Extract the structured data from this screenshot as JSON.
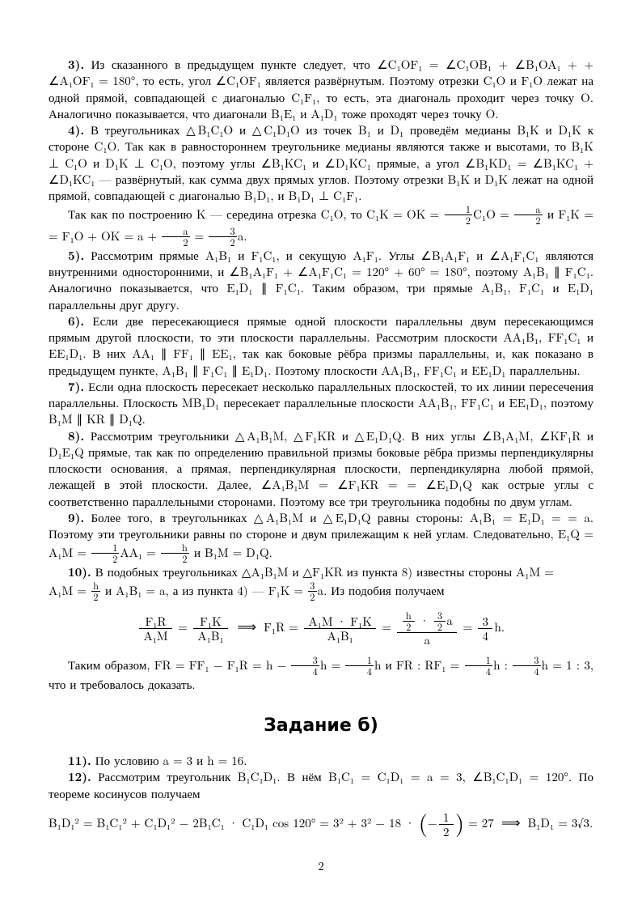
{
  "colors": {
    "text": "#000000",
    "background": "#ffffff"
  },
  "typography": {
    "body_font": "CMU Serif / Times",
    "body_size_pt": 11,
    "heading_font": "CMU Sans Serif",
    "heading_size_pt": 16,
    "heading_weight": "bold"
  },
  "paragraphs": {
    "p3": {
      "label": "3).",
      "text": " Из сказанного в предыдущем пункте следует, что ∠C₁OF₁ = ∠C₁OB₁ + ∠B₁OA₁ + + ∠A₁OF₁ = 180°, то есть, угол ∠C₁OF₁ является развёрнутым. Поэтому отрезки C₁O и F₁O лежат на одной прямой, совпадающей с диагональю C₁F₁, то есть, эта диагональ проходит через точку O. Аналогично показывается, что диагонали B₁E₁ и A₁D₁ тоже проходят через точку O."
    },
    "p4a": {
      "label": "4).",
      "text": " В треугольниках △B₁C₁O и △C₁D₁O из точек B₁ и D₁ проведём медианы B₁K и D₁K к стороне C₁O. Так как в равностороннем треугольнике медианы являются также и высотами, то B₁K ⊥ C₁O и D₁K ⊥ C₁O, поэтому углы ∠B₁KC₁ и ∠D₁KC₁ прямые, а угол ∠B₁KD₁ = ∠B₁KC₁ + ∠D₁KC₁ — развёрнутый, как сумма двух прямых углов. Поэтому отрезки B₁K и D₁K лежат на одной прямой, совпадающей с диагональю B₁D₁, и B₁D₁ ⊥ C₁F₁."
    },
    "p4b": "Так как по построению K — середина отрезка C₁O, то C₁K = OK = ",
    "p4b_tail": "C₁O = ",
    "p4b_tail2": " и F₁K = = F₁O + OK = a + ",
    "p4b_tail3": " = ",
    "p4b_tail4": "a.",
    "p5": {
      "label": "5).",
      "text": " Рассмотрим прямые A₁B₁ и F₁C₁, и секущую A₁F₁. Углы ∠B₁A₁F₁ и ∠A₁F₁C₁ являются внутренними односторонними, и ∠B₁A₁F₁ + ∠A₁F₁C₁ = 120° + 60° = 180°, поэтому A₁B₁ ∥ F₁C₁. Аналогично показывается, что E₁D₁ ∥ F₁C₁. Таким образом, три прямые A₁B₁, F₁C₁ и E₁D₁ параллельны друг другу."
    },
    "p6": {
      "label": "6).",
      "text": " Если две пересекающиеся прямые одной плоскости параллельны двум пересекающимся прямым другой плоскости, то эти плоскости параллельны. Рассмотрим плоскости AA₁B₁, FF₁C₁ и EE₁D₁. В них AA₁ ∥ FF₁ ∥ EE₁, так как боковые рёбра призмы параллельны, и, как показано в предыдущем пункте, A₁B₁ ∥ F₁C₁ ∥ E₁D₁. Поэтому плоскости AA₁B₁, FF₁C₁ и EE₁D₁ параллельны."
    },
    "p7": {
      "label": "7).",
      "text": " Если одна плоскость пересекает несколько параллельных плоскостей, то их линии пересечения параллельны. Плоскость MB₁D₁ пересекает параллельные плоскости AA₁B₁, FF₁C₁ и EE₁D₁, поэтому B₁M ∥ KR ∥ D₁Q."
    },
    "p8": {
      "label": "8).",
      "text": " Рассмотрим треугольники △A₁B₁M, △F₁KR и △E₁D₁Q. В них углы ∠B₁A₁M, ∠KF₁R и D₁E₁Q прямые, так как по определению правильной призмы боковые рёбра призмы перпендикулярны плоскости основания, а прямая, перпендикулярная плоскости, перпендикулярна любой прямой, лежащей в этой плоскости. Далее, ∠A₁B₁M = ∠F₁KR = = ∠E₁D₁Q как острые углы с соответственно параллельными сторонами. Поэтому все три треугольника подобны по двум углам."
    },
    "p9a": {
      "label": "9).",
      "text": " Более того, в треугольниках △A₁B₁M и △E₁D₁Q равны стороны: A₁B₁ = E₁D₁ = = a. Поэтому эти треугольники равны по стороне и двум прилежащим к ней углам. Следовательно, E₁Q = A₁M = "
    },
    "p9a_tail": "AA₁ = ",
    "p9a_tail2": " и B₁M = D₁Q.",
    "p10a": {
      "label": "10).",
      "text": " В подобных треугольниках △A₁B₁M и △F₁KR из пункта 8) известны стороны A₁M = "
    },
    "p10a_mid": " и A₁B₁ = a, а из пункта 4) — F₁K = ",
    "p10a_tail": "a. Из подобия получаем",
    "display1_lhs_num": "F₁R",
    "display1_lhs_den": "A₁M",
    "display1_mid_num": "F₁K",
    "display1_mid_den": "A₁B₁",
    "display1_r1": "F₁R = ",
    "display1_f2_num": "A₁M · F₁K",
    "display1_f2_den": "A₁B₁",
    "display1_f3_den": "a",
    "display1_tail": "h.",
    "p_tak": "Таким образом, FR = FF₁ − F₁R = h − ",
    "p_tak_mid": "h = ",
    "p_tak_mid2": "h и FR : RF₁ = ",
    "p_tak_mid3": "h : ",
    "p_tak_tail": "h = 1 : 3, что и требовалось доказать.",
    "heading_b": "Задание б)",
    "p11": {
      "label": "11).",
      "text": " По условию a = 3 и h = 16."
    },
    "p12": {
      "label": "12).",
      "text": " Рассмотрим треугольник B₁C₁D₁. В нём B₁C₁ = C₁D₁ = a = 3, ∠B₁C₁D₁ = 120°. По теореме косинусов получаем"
    },
    "display2_lhs": "B₁D₁² = B₁C₁² + C₁D₁² − 2B₁C₁ · C₁D₁ cos 120° = 3² + 3² − 18 · ",
    "display2_frac_num": "1",
    "display2_frac_den": "2",
    "display2_tail_pre": " = 27 ",
    "display2_tail": " B₁D₁ = 3√3.",
    "pagenum": "2"
  },
  "fractions": {
    "half": {
      "num": "1",
      "den": "2"
    },
    "a_over_2": {
      "num": "a",
      "den": "2"
    },
    "three_halves": {
      "num": "3",
      "den": "2"
    },
    "h_over_2": {
      "num": "h",
      "den": "2"
    },
    "three_quarters": {
      "num": "3",
      "den": "4"
    },
    "one_quarter": {
      "num": "1",
      "den": "4"
    },
    "f3_num_left": {
      "num": "h",
      "den": "2"
    },
    "f3_num_right": {
      "num": "3",
      "den": "2"
    }
  }
}
